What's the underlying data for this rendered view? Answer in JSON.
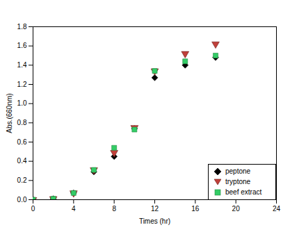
{
  "chart_data": {
    "type": "scatter",
    "x_label": "Times (hr)",
    "y_label": "Abs.(660nm)",
    "xlim": [
      0,
      24
    ],
    "xticks": [
      0,
      4,
      8,
      12,
      16,
      20,
      24
    ],
    "ylim": [
      0,
      1.8
    ],
    "yticks": [
      {
        "value": 0,
        "label": "0.0"
      },
      0.2,
      0.4,
      0.6,
      0.8,
      {
        "value": 1,
        "label": "1.0"
      },
      1.2,
      1.4,
      1.6,
      1.8
    ],
    "grid": false,
    "legend": "lower right",
    "x": [
      0,
      2,
      4,
      6,
      8,
      10,
      12,
      15,
      18
    ],
    "series": [
      {
        "name": "peptone",
        "color": "#000000",
        "marker": "diamond",
        "values": [
          0.0,
          0.01,
          0.07,
          0.29,
          0.45,
          0.74,
          1.27,
          1.4,
          1.48
        ]
      },
      {
        "name": "tryptone",
        "color": "#c0403a",
        "marker": "triangle-down",
        "values": [
          0.0,
          0.01,
          0.07,
          0.31,
          0.49,
          0.75,
          1.34,
          1.52,
          1.62
        ]
      },
      {
        "name": "beef extract",
        "color": "#33cc66",
        "marker": "square",
        "values": [
          0.0,
          0.01,
          0.07,
          0.31,
          0.54,
          0.73,
          1.34,
          1.44,
          1.5
        ]
      }
    ]
  }
}
